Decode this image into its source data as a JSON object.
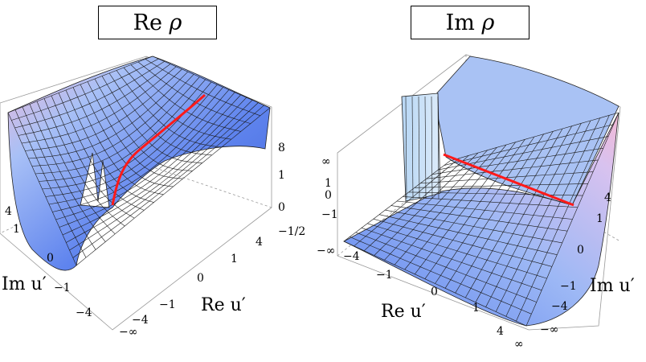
{
  "panels": [
    {
      "title_prefix": "Re ",
      "title_symbol": "ρ",
      "axis_x_label": "Re u′",
      "axis_y_label": "Im u′",
      "x_ticks": [
        "−∞",
        "−4",
        "−1",
        "0",
        "1",
        "4"
      ],
      "y_ticks": [
        "4",
        "1",
        "0",
        "−1",
        "−4"
      ],
      "z_ticks": [
        "8",
        "1",
        "0",
        "−1/2"
      ],
      "surface_color": "#5a7ff0",
      "highlight_color": "#ff1a1a"
    },
    {
      "title_prefix": "Im ",
      "title_symbol": "ρ",
      "axis_x_label": "Re u′",
      "axis_y_label": "Im u′",
      "x_ticks": [
        "−1",
        "0",
        "1",
        "4",
        "∞"
      ],
      "y_ticks": [
        "4",
        "1",
        "0",
        "−1",
        "−4",
        "−∞"
      ],
      "z_ticks": [
        "∞",
        "1",
        "0",
        "−1",
        "−∞"
      ],
      "extra_x_tick": "−4",
      "surface_color": "#6a8cf2",
      "highlight_color": "#ff1a1a"
    }
  ]
}
